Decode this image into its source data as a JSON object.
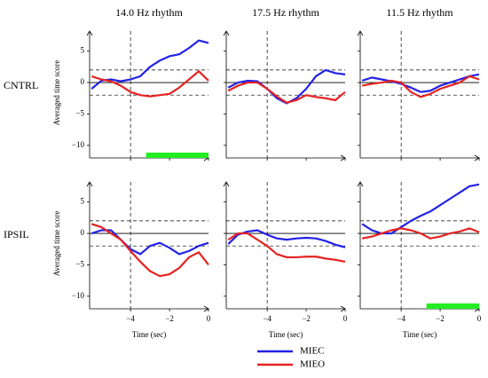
{
  "row_labels": [
    "CNTRL",
    "IPSIL"
  ],
  "chart_data": [
    {
      "type": "line",
      "title": "14.0 Hz rhythm",
      "ylabel": "Averaged time score",
      "x": [
        -6,
        -5.5,
        -5,
        -4.5,
        -4,
        -3.5,
        -3,
        -2.5,
        -2,
        -1.5,
        -1,
        -0.5,
        0
      ],
      "xlim": [
        -6.1,
        0
      ],
      "ylim": [
        -12,
        8.2
      ],
      "xticks": [
        -4,
        -2,
        0
      ],
      "yticks": [
        5,
        0,
        {
          "value": -5,
          "label": "−5"
        },
        {
          "value": -10,
          "label": "−10"
        }
      ],
      "baseline": 0,
      "hlines": [
        -2,
        2
      ],
      "vlines": [
        -4
      ],
      "significance": [
        -3.2,
        0
      ],
      "significance_color": "#22ee22",
      "series": [
        {
          "name": "MIEC",
          "color": "#2222e6",
          "values": [
            -1,
            0.3,
            0.5,
            0.2,
            0.5,
            1,
            2.5,
            3.5,
            4.2,
            4.5,
            5.5,
            6.7,
            6.3
          ]
        },
        {
          "name": "MIEO",
          "color": "#e62222",
          "values": [
            1,
            0.5,
            0.2,
            -0.5,
            -1.5,
            -2,
            -2.2,
            -2,
            -1.8,
            -0.8,
            0.5,
            1.8,
            0.3
          ]
        }
      ]
    },
    {
      "type": "line",
      "title": "17.5 Hz rhythm",
      "x": [
        -6,
        -5.5,
        -5,
        -4.5,
        -4,
        -3.5,
        -3,
        -2.5,
        -2,
        -1.5,
        -1,
        -0.5,
        0
      ],
      "xlim": [
        -6.1,
        0
      ],
      "ylim": [
        -12,
        8.2
      ],
      "xticks": [
        -4,
        -2,
        0
      ],
      "yticks": [
        5,
        0,
        -5,
        -10
      ],
      "baseline": 0,
      "hlines": [
        -2,
        2
      ],
      "vlines": [
        -4
      ],
      "series": [
        {
          "name": "MIEC",
          "color": "#2222e6",
          "values": [
            -0.8,
            0,
            0.3,
            0.2,
            -1,
            -2.5,
            -3.3,
            -2.5,
            -1,
            1,
            2,
            1.5,
            1.3
          ]
        },
        {
          "name": "MIEO",
          "color": "#e62222",
          "values": [
            -1.3,
            -0.5,
            0,
            0,
            -1,
            -2.2,
            -3.2,
            -2.8,
            -2,
            -2.3,
            -2.5,
            -2.8,
            -1.5
          ]
        }
      ]
    },
    {
      "type": "line",
      "title": "11.5 Hz rhythm",
      "x": [
        -6,
        -5.5,
        -5,
        -4.5,
        -4,
        -3.5,
        -3,
        -2.5,
        -2,
        -1.5,
        -1,
        -0.5,
        0
      ],
      "xlim": [
        -6.1,
        0
      ],
      "ylim": [
        -12,
        8.2
      ],
      "xticks": [
        -4,
        -2,
        0
      ],
      "yticks": [
        5,
        0,
        -5,
        -10
      ],
      "baseline": 0,
      "hlines": [
        -2,
        2
      ],
      "vlines": [
        -4
      ],
      "series": [
        {
          "name": "MIEC",
          "color": "#2222e6",
          "values": [
            0.3,
            0.8,
            0.5,
            0.2,
            -0.2,
            -0.8,
            -1.5,
            -1.3,
            -0.5,
            0,
            0.5,
            1,
            1.3
          ]
        },
        {
          "name": "MIEO",
          "color": "#e62222",
          "values": [
            -0.5,
            -0.2,
            0,
            0.3,
            0,
            -1.5,
            -2.3,
            -1.8,
            -1,
            -0.5,
            0,
            1,
            0.5
          ]
        }
      ]
    },
    {
      "type": "line",
      "xlabel": "Time (sec)",
      "ylabel": "Averaged time score",
      "x": [
        -6,
        -5.5,
        -5,
        -4.5,
        -4,
        -3.5,
        -3,
        -2.5,
        -2,
        -1.5,
        -1,
        -0.5,
        0
      ],
      "xlim": [
        -6.1,
        0
      ],
      "ylim": [
        -12,
        8.2
      ],
      "xticks": [
        {
          "value": -4,
          "label": "−4"
        },
        {
          "value": -2,
          "label": "−2"
        },
        0
      ],
      "yticks": [
        5,
        0,
        {
          "value": -5,
          "label": "−5"
        },
        {
          "value": -10,
          "label": "−10"
        }
      ],
      "baseline": 0,
      "hlines": [
        -2,
        2
      ],
      "vlines": [
        -4
      ],
      "series": [
        {
          "name": "MIEC",
          "color": "#2222e6",
          "values": [
            0,
            0.5,
            0.5,
            -1,
            -2.5,
            -3.3,
            -2,
            -1.5,
            -2.3,
            -3.3,
            -2.8,
            -2,
            -1.5
          ]
        },
        {
          "name": "MIEO",
          "color": "#e62222",
          "values": [
            1.5,
            1,
            0,
            -1,
            -2.8,
            -4.5,
            -6,
            -6.8,
            -6.5,
            -5.5,
            -3.8,
            -3,
            -5
          ]
        }
      ]
    },
    {
      "type": "line",
      "xlabel": "Time (sec)",
      "x": [
        -6,
        -5.5,
        -5,
        -4.5,
        -4,
        -3.5,
        -3,
        -2.5,
        -2,
        -1.5,
        -1,
        -0.5,
        0
      ],
      "xlim": [
        -6.1,
        0
      ],
      "ylim": [
        -12,
        8.2
      ],
      "xticks": [
        {
          "value": -4,
          "label": "−4"
        },
        {
          "value": -2,
          "label": "−2"
        },
        0
      ],
      "yticks": [
        5,
        0,
        -5,
        -10
      ],
      "baseline": 0,
      "hlines": [
        -2,
        2
      ],
      "vlines": [
        -4
      ],
      "series": [
        {
          "name": "MIEC",
          "color": "#2222e6",
          "values": [
            -1.7,
            -0.2,
            0.3,
            0.5,
            -0.2,
            -0.8,
            -1,
            -0.8,
            -0.7,
            -0.8,
            -1.2,
            -1.8,
            -2.2
          ]
        },
        {
          "name": "MIEO",
          "color": "#e62222",
          "values": [
            -1,
            0,
            0,
            -1,
            -2,
            -3.3,
            -3.8,
            -3.8,
            -3.7,
            -3.7,
            -4,
            -4.2,
            -4.5
          ]
        }
      ]
    },
    {
      "type": "line",
      "xlabel": "Time (sec)",
      "x": [
        -6,
        -5.5,
        -5,
        -4.5,
        -4,
        -3.5,
        -3,
        -2.5,
        -2,
        -1.5,
        -1,
        -0.5,
        0
      ],
      "xlim": [
        -6.1,
        0
      ],
      "ylim": [
        -12,
        8.2
      ],
      "xticks": [
        {
          "value": -4,
          "label": "−4"
        },
        {
          "value": -2,
          "label": "−2"
        },
        0
      ],
      "yticks": [
        5,
        0,
        -5,
        -10
      ],
      "baseline": 0,
      "hlines": [
        -2,
        2
      ],
      "vlines": [
        -4
      ],
      "significance": [
        -2.7,
        0
      ],
      "significance_color": "#22ee22",
      "series": [
        {
          "name": "MIEC",
          "color": "#2222e6",
          "values": [
            1.5,
            0.5,
            0,
            0,
            1,
            2,
            2.8,
            3.5,
            4.5,
            5.5,
            6.5,
            7.5,
            7.8
          ]
        },
        {
          "name": "MIEO",
          "color": "#e62222",
          "values": [
            -0.8,
            -0.5,
            0,
            0.5,
            0.8,
            0.5,
            0,
            -0.8,
            -0.5,
            0,
            0.3,
            0.8,
            0.2
          ]
        }
      ]
    }
  ]
}
